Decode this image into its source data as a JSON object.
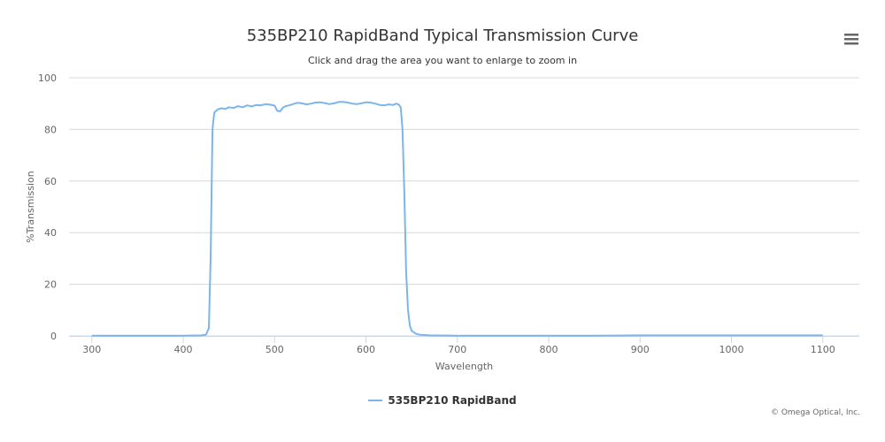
{
  "chart_data": {
    "type": "line",
    "title": "535BP210 RapidBand Typical Transmission Curve",
    "subtitle": "Click and drag the area you want to enlarge to zoom in",
    "xlabel": "Wavelength",
    "ylabel": "%Transmission",
    "xlim": [
      275,
      1140
    ],
    "ylim": [
      0,
      100
    ],
    "x_ticks": [
      300,
      400,
      500,
      600,
      700,
      800,
      900,
      1000,
      1100
    ],
    "y_ticks": [
      0,
      20,
      40,
      60,
      80,
      100
    ],
    "grid": "horizontal",
    "legend_position": "bottom-center",
    "series": [
      {
        "name": "535BP210 RapidBand",
        "color": "#7cb5ec",
        "points": [
          [
            300,
            0.1
          ],
          [
            350,
            0.1
          ],
          [
            400,
            0.1
          ],
          [
            420,
            0.2
          ],
          [
            425,
            0.5
          ],
          [
            428,
            3
          ],
          [
            430,
            30
          ],
          [
            432,
            80
          ],
          [
            434,
            86.5
          ],
          [
            438,
            87.8
          ],
          [
            442,
            88.2
          ],
          [
            446,
            87.9
          ],
          [
            450,
            88.6
          ],
          [
            455,
            88.3
          ],
          [
            460,
            89.0
          ],
          [
            465,
            88.6
          ],
          [
            470,
            89.3
          ],
          [
            475,
            88.9
          ],
          [
            480,
            89.5
          ],
          [
            485,
            89.3
          ],
          [
            490,
            89.8
          ],
          [
            495,
            89.6
          ],
          [
            500,
            89.2
          ],
          [
            503,
            87.2
          ],
          [
            506,
            87.0
          ],
          [
            509,
            88.4
          ],
          [
            512,
            89.0
          ],
          [
            516,
            89.3
          ],
          [
            520,
            89.8
          ],
          [
            525,
            90.3
          ],
          [
            530,
            90.1
          ],
          [
            535,
            89.7
          ],
          [
            540,
            90.0
          ],
          [
            545,
            90.4
          ],
          [
            550,
            90.5
          ],
          [
            555,
            90.2
          ],
          [
            560,
            89.8
          ],
          [
            565,
            90.1
          ],
          [
            570,
            90.6
          ],
          [
            575,
            90.7
          ],
          [
            580,
            90.4
          ],
          [
            585,
            90.0
          ],
          [
            590,
            89.8
          ],
          [
            595,
            90.1
          ],
          [
            600,
            90.5
          ],
          [
            605,
            90.4
          ],
          [
            610,
            90.0
          ],
          [
            615,
            89.5
          ],
          [
            620,
            89.3
          ],
          [
            625,
            89.7
          ],
          [
            630,
            89.5
          ],
          [
            633,
            90.0
          ],
          [
            636,
            89.6
          ],
          [
            638,
            88.5
          ],
          [
            640,
            80
          ],
          [
            642,
            55
          ],
          [
            644,
            25
          ],
          [
            646,
            10
          ],
          [
            648,
            4
          ],
          [
            650,
            2
          ],
          [
            655,
            0.8
          ],
          [
            660,
            0.4
          ],
          [
            670,
            0.2
          ],
          [
            700,
            0.1
          ],
          [
            750,
            0.1
          ],
          [
            800,
            0.1
          ],
          [
            850,
            0.1
          ],
          [
            900,
            0.2
          ],
          [
            950,
            0.2
          ],
          [
            1000,
            0.2
          ],
          [
            1050,
            0.2
          ],
          [
            1100,
            0.2
          ]
        ]
      }
    ]
  },
  "menu": {
    "icon": "hamburger-menu-icon"
  },
  "credits": "© Omega Optical, Inc."
}
